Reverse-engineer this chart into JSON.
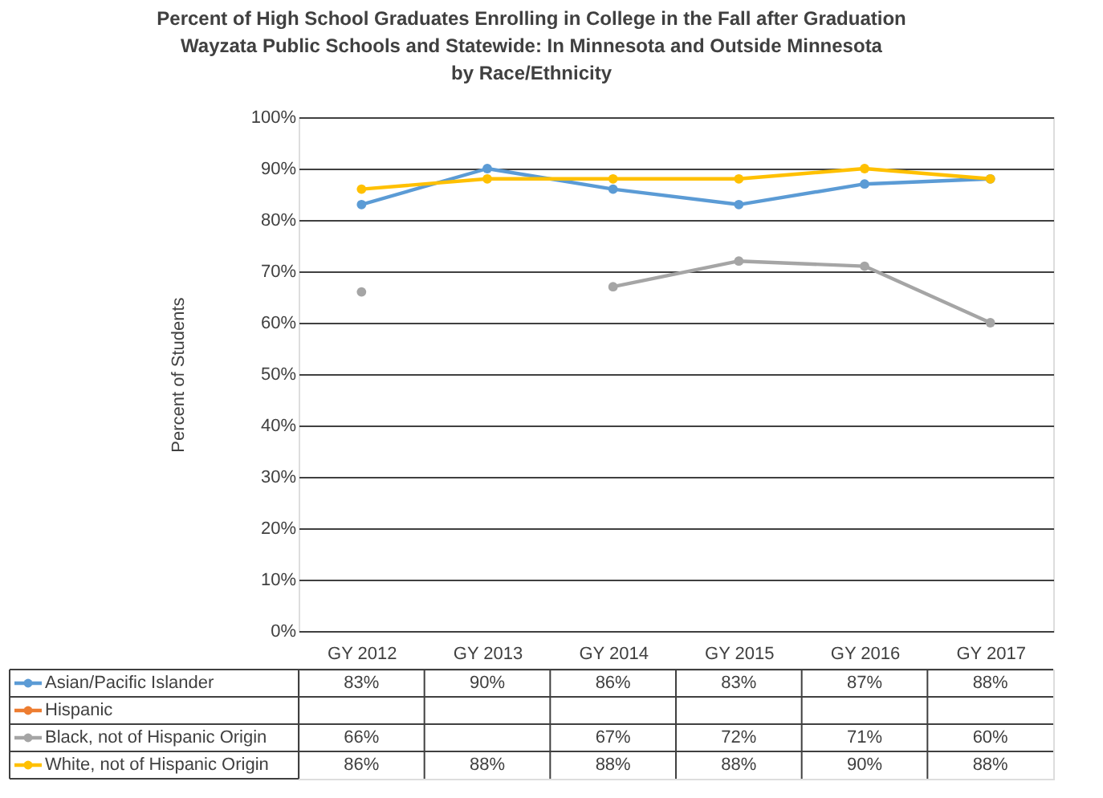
{
  "chart_data": {
    "type": "line",
    "title": "Percent of High School Graduates Enrolling in College in the Fall after Graduation\nWayzata Public Schools and Statewide: In Minnesota and Outside Minnesota\nby Race/Ethnicity",
    "ylabel": "Percent of Students",
    "categories": [
      "GY 2012",
      "GY 2013",
      "GY 2014",
      "GY 2015",
      "GY 2016",
      "GY 2017"
    ],
    "series": [
      {
        "name": "Asian/Pacific Islander",
        "color": "#5b9bd5",
        "values": [
          83,
          90,
          86,
          83,
          87,
          88
        ],
        "value_labels": [
          "83%",
          "90%",
          "86%",
          "83%",
          "87%",
          "88%"
        ]
      },
      {
        "name": "Hispanic",
        "color": "#ed7d31",
        "values": [
          null,
          null,
          null,
          null,
          null,
          null
        ],
        "value_labels": [
          null,
          null,
          null,
          null,
          null,
          null
        ]
      },
      {
        "name": "Black, not of Hispanic Origin",
        "color": "#a5a5a5",
        "values": [
          66,
          null,
          67,
          72,
          71,
          60
        ],
        "value_labels": [
          "66%",
          null,
          "67%",
          "72%",
          "71%",
          "60%"
        ]
      },
      {
        "name": "White, not of Hispanic Origin",
        "color": "#ffc000",
        "values": [
          86,
          88,
          88,
          88,
          90,
          88
        ],
        "value_labels": [
          "86%",
          "88%",
          "88%",
          "88%",
          "90%",
          "88%"
        ]
      }
    ],
    "ylim": [
      0,
      100
    ],
    "yticks": [
      {
        "value": 0,
        "label": "0%"
      },
      {
        "value": 10,
        "label": "10%"
      },
      {
        "value": 20,
        "label": "20%"
      },
      {
        "value": 30,
        "label": "30%"
      },
      {
        "value": 40,
        "label": "40%"
      },
      {
        "value": 50,
        "label": "50%"
      },
      {
        "value": 60,
        "label": "60%"
      },
      {
        "value": 70,
        "label": "70%"
      },
      {
        "value": 80,
        "label": "80%"
      },
      {
        "value": 90,
        "label": "90%"
      },
      {
        "value": 100,
        "label": "100%"
      }
    ],
    "grid": "y",
    "legend": "bottom",
    "marker": "circle",
    "line_style": "solid"
  }
}
